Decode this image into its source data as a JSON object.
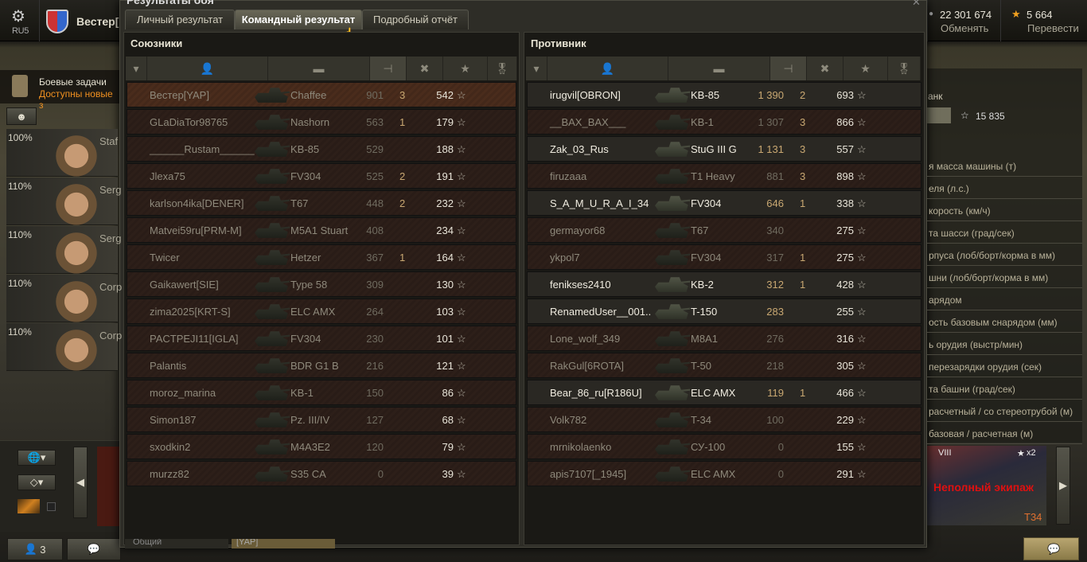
{
  "topbar": {
    "server": "RU5",
    "player": "Вестер[",
    "credits": "22 301 674",
    "credits_action": "Обменять",
    "free_xp": "5 664",
    "free_xp_action": "Перевести"
  },
  "missions": {
    "title": "Боевые задачи",
    "subtitle": "Доступны новые з"
  },
  "crew": [
    {
      "pct": "100%",
      "rank": "Staf"
    },
    {
      "pct": "110%",
      "rank": "Serg"
    },
    {
      "pct": "110%",
      "rank": "Serg"
    },
    {
      "pct": "110%",
      "rank": "Corp"
    },
    {
      "pct": "110%",
      "rank": "Corp"
    }
  ],
  "bottom": {
    "platoon_count": "3",
    "chat_tab_common": "Общий",
    "chat_tab_clan": "[YAP]"
  },
  "vehicle_info": {
    "label_partial": "анк",
    "xp": "15 835",
    "stats": [
      "я масса машины (т)",
      "еля (л.с.)",
      "корость (км/ч)",
      "та шасси (град/сек)",
      "рпуса (лоб/борт/корма в мм)",
      "шни (лоб/борт/корма в мм)",
      "арядом",
      "ость базовым снарядом (мм)",
      "ь орудия (выстр/мин)",
      "перезарядки орудия (сек)",
      "та башни (град/сек)",
      "расчетный / со стереотрубой (м)",
      "базовая / расчетная (м)"
    ]
  },
  "carousel": {
    "tier": "VIII",
    "multiplier": "x2",
    "warning": "Неполный экипаж",
    "tank": "T34",
    "warning_color": "#e01010"
  },
  "modal": {
    "title": "Результаты боя",
    "tabs": [
      {
        "label": "Личный результат"
      },
      {
        "label": "Командный результат"
      },
      {
        "label": "Подробный отчёт"
      }
    ],
    "active_tab": 1,
    "allies": {
      "title": "Союзники",
      "rows": [
        {
          "name": "Вестер[YAP]",
          "tank": "Chaffee",
          "damage": "901",
          "kills": "3",
          "xp": "542",
          "alive": false,
          "me": true
        },
        {
          "name": "GLaDiaTor98765",
          "tank": "Nashorn",
          "damage": "563",
          "kills": "1",
          "xp": "179",
          "alive": false
        },
        {
          "name": "______Rustam______",
          "tank": "KB-85",
          "damage": "529",
          "kills": "",
          "xp": "188",
          "alive": false
        },
        {
          "name": "Jlexa75",
          "tank": "FV304",
          "damage": "525",
          "kills": "2",
          "xp": "191",
          "alive": false
        },
        {
          "name": "karlson4ika[DENER]",
          "tank": "T67",
          "damage": "448",
          "kills": "2",
          "xp": "232",
          "alive": false
        },
        {
          "name": "Matvei59ru[PRM-M]",
          "tank": "M5A1 Stuart",
          "damage": "408",
          "kills": "",
          "xp": "234",
          "alive": false
        },
        {
          "name": "Twicer",
          "tank": "Hetzer",
          "damage": "367",
          "kills": "1",
          "xp": "164",
          "alive": false
        },
        {
          "name": "Gaikawert[SIE]",
          "tank": "Type 58",
          "damage": "309",
          "kills": "",
          "xp": "130",
          "alive": false
        },
        {
          "name": "zima2025[KRT-S]",
          "tank": "ELC AMX",
          "damage": "264",
          "kills": "",
          "xp": "103",
          "alive": false
        },
        {
          "name": "PACTPEJI11[IGLA]",
          "tank": "FV304",
          "damage": "230",
          "kills": "",
          "xp": "101",
          "alive": false
        },
        {
          "name": "Palantis",
          "tank": "BDR G1 B",
          "damage": "216",
          "kills": "",
          "xp": "121",
          "alive": false
        },
        {
          "name": "moroz_marina",
          "tank": "KB-1",
          "damage": "150",
          "kills": "",
          "xp": "86",
          "alive": false
        },
        {
          "name": "Simon187",
          "tank": "Pz. III/IV",
          "damage": "127",
          "kills": "",
          "xp": "68",
          "alive": false
        },
        {
          "name": "sxodkin2",
          "tank": "M4A3E2",
          "damage": "120",
          "kills": "",
          "xp": "79",
          "alive": false
        },
        {
          "name": "murzz82",
          "tank": "S35 CA",
          "damage": "0",
          "kills": "",
          "xp": "39",
          "alive": false
        }
      ]
    },
    "enemies": {
      "title": "Противник",
      "rows": [
        {
          "name": "irugvil[OBRON]",
          "tank": "KB-85",
          "damage": "1 390",
          "kills": "2",
          "xp": "693",
          "alive": true
        },
        {
          "name": "__BAX_BAX___",
          "tank": "KB-1",
          "damage": "1 307",
          "kills": "3",
          "xp": "866",
          "alive": false
        },
        {
          "name": "Zak_03_Rus",
          "tank": "StuG III G",
          "damage": "1 131",
          "kills": "3",
          "xp": "557",
          "alive": true
        },
        {
          "name": "firuzaaa",
          "tank": "T1 Heavy",
          "damage": "881",
          "kills": "3",
          "xp": "898",
          "alive": false
        },
        {
          "name": "S_A_M_U_R_A_I_34",
          "tank": "FV304",
          "damage": "646",
          "kills": "1",
          "xp": "338",
          "alive": true
        },
        {
          "name": "germayor68",
          "tank": "T67",
          "damage": "340",
          "kills": "",
          "xp": "275",
          "alive": false
        },
        {
          "name": "ykpol7",
          "tank": "FV304",
          "damage": "317",
          "kills": "1",
          "xp": "275",
          "alive": false
        },
        {
          "name": "fenikses2410",
          "tank": "KB-2",
          "damage": "312",
          "kills": "1",
          "xp": "428",
          "alive": true
        },
        {
          "name": "RenamedUser__001..",
          "tank": "T-150",
          "damage": "283",
          "kills": "",
          "xp": "255",
          "alive": true
        },
        {
          "name": "Lone_wolf_349",
          "tank": "M8A1",
          "damage": "276",
          "kills": "",
          "xp": "316",
          "alive": false
        },
        {
          "name": "RakGul[6ROTA]",
          "tank": "T-50",
          "damage": "218",
          "kills": "",
          "xp": "305",
          "alive": false
        },
        {
          "name": "Bear_86_ru[R186U]",
          "tank": "ELC AMX",
          "damage": "119",
          "kills": "1",
          "xp": "466",
          "alive": true
        },
        {
          "name": "Volk782",
          "tank": "T-34",
          "damage": "100",
          "kills": "",
          "xp": "229",
          "alive": false
        },
        {
          "name": "mrnikolaenko",
          "tank": "СУ-100",
          "damage": "0",
          "kills": "",
          "xp": "155",
          "alive": false
        },
        {
          "name": "apis7107[_1945]",
          "tank": "ELC AMX",
          "damage": "0",
          "kills": "",
          "xp": "291",
          "alive": false
        }
      ]
    },
    "columns": [
      "squad-icon",
      "player-icon",
      "tank-icon",
      "damage-icon",
      "kills-icon",
      "xp-icon",
      "medal-icon"
    ],
    "sorted_column": "damage"
  }
}
